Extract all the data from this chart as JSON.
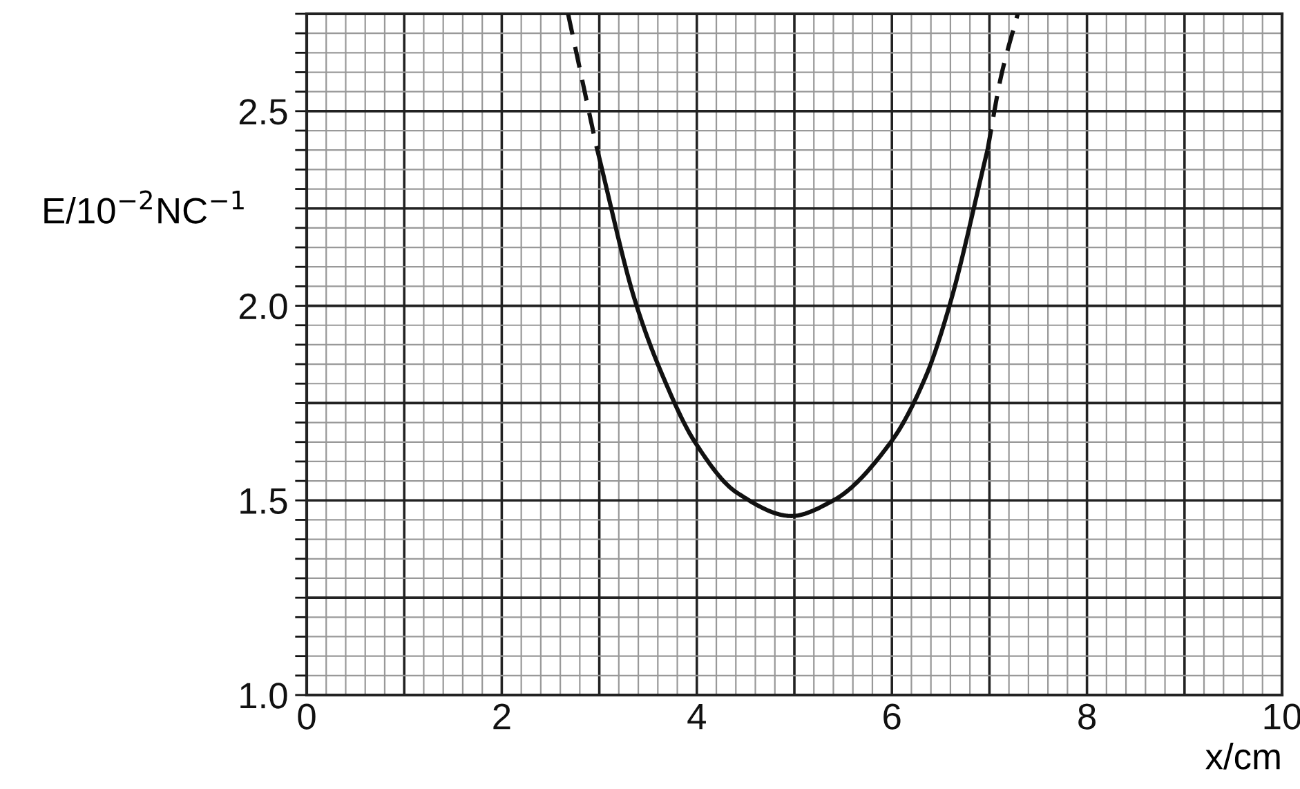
{
  "chart_data": {
    "type": "line",
    "xlabel": "x/cm",
    "ylabel": "E/10$^{−2}$NC$^{−1}$",
    "xlim": [
      0,
      10
    ],
    "ylim": [
      1.0,
      2.75
    ],
    "xticks": [
      0,
      {
        "value": 0.2,
        "label": null
      },
      {
        "value": 0.4,
        "label": null
      },
      {
        "value": 0.6,
        "label": null
      },
      {
        "value": 0.8,
        "label": null
      },
      {
        "value": 1,
        "label": null
      },
      {
        "value": 1.2,
        "label": null
      },
      {
        "value": 1.4,
        "label": null
      },
      {
        "value": 1.6,
        "label": null
      },
      {
        "value": 1.8,
        "label": null
      },
      2,
      {
        "value": 2.2,
        "label": null
      },
      {
        "value": 2.4,
        "label": null
      },
      {
        "value": 2.6,
        "label": null
      },
      {
        "value": 2.8,
        "label": null
      },
      {
        "value": 3,
        "label": null
      },
      {
        "value": 3.2,
        "label": null
      },
      {
        "value": 3.4,
        "label": null
      },
      {
        "value": 3.6,
        "label": null
      },
      {
        "value": 3.8,
        "label": null
      },
      4,
      {
        "value": 4.2,
        "label": null
      },
      {
        "value": 4.4,
        "label": null
      },
      {
        "value": 4.6,
        "label": null
      },
      {
        "value": 4.8,
        "label": null
      },
      {
        "value": 5,
        "label": null
      },
      {
        "value": 5.2,
        "label": null
      },
      {
        "value": 5.4,
        "label": null
      },
      {
        "value": 5.6,
        "label": null
      },
      {
        "value": 5.8,
        "label": null
      },
      6,
      {
        "value": 6.2,
        "label": null
      },
      {
        "value": 6.4,
        "label": null
      },
      {
        "value": 6.6,
        "label": null
      },
      {
        "value": 6.8,
        "label": null
      },
      {
        "value": 7,
        "label": null
      },
      {
        "value": 7.2,
        "label": null
      },
      {
        "value": 7.4,
        "label": null
      },
      {
        "value": 7.6,
        "label": null
      },
      {
        "value": 7.8,
        "label": null
      },
      8,
      {
        "value": 8.2,
        "label": null
      },
      {
        "value": 8.4,
        "label": null
      },
      {
        "value": 8.6,
        "label": null
      },
      {
        "value": 8.8,
        "label": null
      },
      {
        "value": 9,
        "label": null
      },
      {
        "value": 9.2,
        "label": null
      },
      {
        "value": 9.4,
        "label": null
      },
      {
        "value": 9.6,
        "label": null
      },
      {
        "value": 9.8,
        "label": null
      },
      10
    ],
    "yticks": [
      {
        "value": 1.0,
        "label": "1.0"
      },
      {
        "value": 1.05,
        "label": null
      },
      {
        "value": 1.1,
        "label": null
      },
      {
        "value": 1.15,
        "label": null
      },
      {
        "value": 1.2,
        "label": null
      },
      {
        "value": 1.25,
        "label": null
      },
      {
        "value": 1.3,
        "label": null
      },
      {
        "value": 1.35,
        "label": null
      },
      {
        "value": 1.4,
        "label": null
      },
      {
        "value": 1.45,
        "label": null
      },
      1.5,
      {
        "value": 1.55,
        "label": null
      },
      {
        "value": 1.6,
        "label": null
      },
      {
        "value": 1.65,
        "label": null
      },
      {
        "value": 1.7,
        "label": null
      },
      {
        "value": 1.75,
        "label": null
      },
      {
        "value": 1.8,
        "label": null
      },
      {
        "value": 1.85,
        "label": null
      },
      {
        "value": 1.9,
        "label": null
      },
      {
        "value": 1.95,
        "label": null
      },
      {
        "value": 2.0,
        "label": "2.0"
      },
      {
        "value": 2.05,
        "label": null
      },
      {
        "value": 2.1,
        "label": null
      },
      {
        "value": 2.15,
        "label": null
      },
      {
        "value": 2.2,
        "label": null
      },
      {
        "value": 2.25,
        "label": null
      },
      {
        "value": 2.3,
        "label": null
      },
      {
        "value": 2.35,
        "label": null
      },
      {
        "value": 2.4,
        "label": null
      },
      {
        "value": 2.45,
        "label": null
      },
      2.5,
      {
        "value": 2.55,
        "label": null
      },
      {
        "value": 2.6,
        "label": null
      },
      {
        "value": 2.65,
        "label": null
      },
      {
        "value": 2.7,
        "label": null
      },
      {
        "value": 2.75,
        "label": null
      }
    ],
    "grid": true,
    "marker": "none",
    "series": [
      {
        "color": "#111111",
        "line_style": "solid",
        "x": [
          2.97,
          3.37,
          3.65,
          3.98,
          4.41,
          4.97,
          5.4,
          5.99,
          6.35,
          6.59,
          6.98
        ],
        "values": [
          2.41,
          2.01,
          1.82,
          1.65,
          1.52,
          1.46,
          1.5,
          1.65,
          1.82,
          2.0,
          2.4
        ]
      },
      {
        "color": "#111111",
        "line_style": "dashed",
        "x": [
          2.68,
          2.85,
          2.97,
          5,
          6.98,
          7.12,
          7.29
        ],
        "values": [
          2.75,
          2.55,
          2.41,
          null,
          2.4,
          2.59,
          2.75
        ]
      }
    ]
  }
}
